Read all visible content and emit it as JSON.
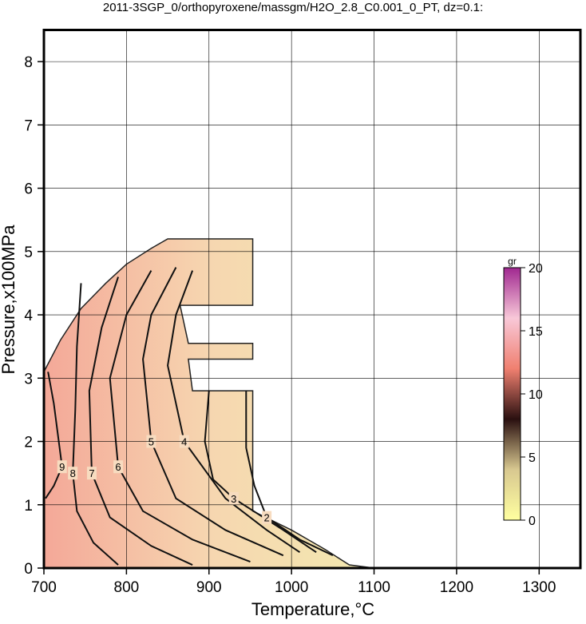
{
  "chart_data": {
    "type": "contour",
    "title": "2011-3SGP_0/orthopyroxene/massgm/H2O_2.8_C0.001_0_PT, dz=0.1:",
    "xlabel": "Temperature,°C",
    "ylabel": "Pressure,x100MPa",
    "xlim": [
      700,
      1350
    ],
    "ylim": [
      0,
      8.5
    ],
    "xticks": [
      700,
      800,
      900,
      1000,
      1100,
      1200,
      1300
    ],
    "yticks": [
      0,
      1,
      2,
      3,
      4,
      5,
      6,
      7,
      8
    ],
    "grid": true,
    "region": {
      "x": [
        700,
        700,
        720,
        745,
        775,
        800,
        830,
        850,
        953,
        953,
        865,
        875,
        953,
        953,
        875,
        880,
        953,
        953,
        1000,
        1040,
        1070,
        1100
      ],
      "y": [
        0,
        3.1,
        3.6,
        4.1,
        4.5,
        4.8,
        5.05,
        5.2,
        5.2,
        4.15,
        4.15,
        3.55,
        3.55,
        3.3,
        3.3,
        2.8,
        2.8,
        0.9,
        0.6,
        0.3,
        0.05,
        0
      ],
      "colors": [
        "#f4a898",
        "#f6d6b0",
        "#f3eab0"
      ]
    },
    "contours": [
      {
        "level": 9,
        "x": [
          705,
          712,
          718,
          722,
          712,
          702
        ],
        "y": [
          3.1,
          2.6,
          2.0,
          1.6,
          1.3,
          1.1
        ]
      },
      {
        "level": 8,
        "x": [
          745,
          740,
          738,
          735,
          740,
          760,
          790
        ],
        "y": [
          4.5,
          3.5,
          2.5,
          1.5,
          0.9,
          0.4,
          0.05
        ]
      },
      {
        "level": 7,
        "x": [
          790,
          770,
          755,
          758,
          780,
          830,
          880
        ],
        "y": [
          4.6,
          3.8,
          2.8,
          1.5,
          0.8,
          0.35,
          0.05
        ]
      },
      {
        "level": 6,
        "x": [
          830,
          800,
          780,
          790,
          820,
          880,
          950
        ],
        "y": [
          4.7,
          4.0,
          3.0,
          1.6,
          0.9,
          0.45,
          0.1
        ]
      },
      {
        "level": 5,
        "x": [
          860,
          830,
          820,
          830,
          860,
          920,
          990
        ],
        "y": [
          4.75,
          4.0,
          3.3,
          2.0,
          1.1,
          0.6,
          0.2
        ]
      },
      {
        "level": 4,
        "x": [
          880,
          860,
          850,
          870,
          920,
          970,
          1010
        ],
        "y": [
          4.7,
          4.0,
          3.2,
          2.0,
          1.1,
          0.6,
          0.25
        ]
      },
      {
        "level": 3,
        "x": [
          900,
          895,
          905,
          930,
          990,
          1030
        ],
        "y": [
          2.8,
          2.0,
          1.4,
          1.1,
          0.6,
          0.25
        ]
      },
      {
        "level": 2,
        "x": [
          945,
          945,
          955,
          970,
          1010,
          1050
        ],
        "y": [
          2.8,
          1.9,
          1.3,
          0.8,
          0.45,
          0.2
        ]
      }
    ],
    "colorbar": {
      "label": "gr",
      "lim": [
        0,
        20
      ],
      "ticks": [
        0,
        5,
        10,
        15,
        20
      ],
      "colors": [
        "#ffffa0",
        "#d8c890",
        "#2a1010",
        "#f08070",
        "#f8c8d8",
        "#a02890"
      ]
    }
  }
}
